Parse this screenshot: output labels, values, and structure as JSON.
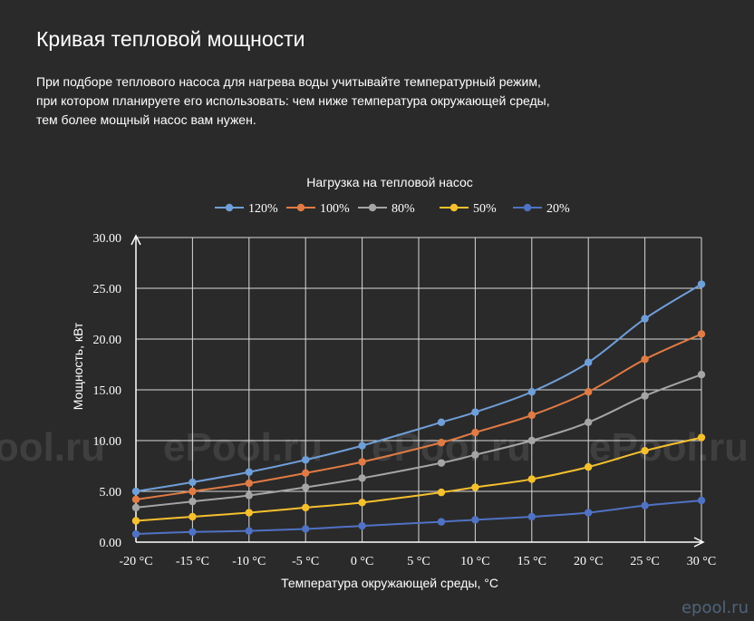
{
  "page": {
    "title": "Кривая тепловой мощности",
    "intro_lines": [
      "При подборе теплового насоса для нагрева воды учитывайте температурный режим,",
      "при котором планируете его использовать: чем ниже температура окружающей среды,",
      "тем более мощный насос вам нужен."
    ],
    "watermark": "ePool.ru",
    "corner_logo": "epool.ru"
  },
  "chart_data": {
    "type": "line",
    "title": "Нагрузка на тепловой насос",
    "xlabel": "Температура окружающей среды, °С",
    "ylabel": "Мощность, кВт",
    "categories": [
      "-20 °C",
      "-15 °C",
      "-10 °C",
      "-5 °C",
      "0 °C",
      "5 °C",
      "10 °C",
      "15 °C",
      "20 °C",
      "25 °C",
      "30 °C"
    ],
    "xlim": [
      -20,
      30
    ],
    "ylim": [
      0,
      30
    ],
    "yticks": [
      "0.00",
      "5.00",
      "10.00",
      "15.00",
      "20.00",
      "25.00",
      "30.00"
    ],
    "grid": true,
    "legend": "top-center",
    "series": [
      {
        "name": "120%",
        "color": "#6f9fd8",
        "x": [
          -20,
          -15,
          -10,
          -5,
          0,
          7,
          10,
          15,
          20,
          25,
          30
        ],
        "values": [
          5.0,
          5.9,
          6.9,
          8.1,
          9.5,
          11.8,
          12.8,
          14.8,
          17.7,
          22.0,
          25.4
        ]
      },
      {
        "name": "100%",
        "color": "#e07b45",
        "x": [
          -20,
          -15,
          -10,
          -5,
          0,
          7,
          10,
          15,
          20,
          25,
          30
        ],
        "values": [
          4.2,
          5.0,
          5.8,
          6.8,
          7.9,
          9.8,
          10.8,
          12.5,
          14.8,
          18.0,
          20.5
        ]
      },
      {
        "name": "80%",
        "color": "#a5a5a5",
        "x": [
          -20,
          -15,
          -10,
          -5,
          0,
          7,
          10,
          15,
          20,
          25,
          30
        ],
        "values": [
          3.4,
          4.0,
          4.6,
          5.4,
          6.3,
          7.8,
          8.6,
          10.0,
          11.8,
          14.4,
          16.5
        ]
      },
      {
        "name": "50%",
        "color": "#f5c02e",
        "x": [
          -20,
          -15,
          -10,
          -5,
          0,
          7,
          10,
          15,
          20,
          25,
          30
        ],
        "values": [
          2.1,
          2.5,
          2.9,
          3.4,
          3.9,
          4.9,
          5.4,
          6.2,
          7.4,
          9.0,
          10.3
        ]
      },
      {
        "name": "20%",
        "color": "#4f72c4",
        "x": [
          -20,
          -15,
          -10,
          -5,
          0,
          7,
          10,
          15,
          20,
          25,
          30
        ],
        "values": [
          0.8,
          1.0,
          1.1,
          1.3,
          1.6,
          2.0,
          2.2,
          2.5,
          2.9,
          3.6,
          4.1
        ]
      }
    ]
  }
}
